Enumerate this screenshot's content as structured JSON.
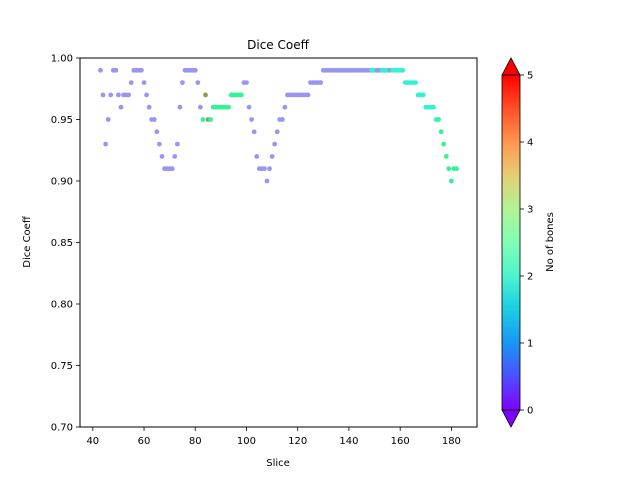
{
  "chart_data": {
    "type": "scatter",
    "title": "Dice Coeff",
    "xlabel": "Slice",
    "ylabel": "Dice Coeff",
    "xlim": [
      35,
      190
    ],
    "ylim": [
      0.7,
      1.0
    ],
    "x_ticks": [
      40,
      60,
      80,
      100,
      120,
      140,
      160,
      180
    ],
    "x_tick_labels": [
      "40",
      "60",
      "80",
      "100",
      "120",
      "140",
      "160",
      "180"
    ],
    "y_ticks": [
      0.7,
      0.75,
      0.8,
      0.85,
      0.9,
      0.95,
      1.0
    ],
    "y_tick_labels": [
      "0.70",
      "0.75",
      "0.80",
      "0.85",
      "0.90",
      "0.95",
      "1.00"
    ],
    "grid": false,
    "colormap": "rainbow",
    "colorbar": {
      "label": "No of bones",
      "range": [
        0,
        5
      ],
      "ticks": [
        0,
        1,
        2,
        3,
        4,
        5
      ],
      "tick_labels": [
        "0",
        "1",
        "2",
        "3",
        "4",
        "5"
      ],
      "extend": "both",
      "under_color": "#8000ff",
      "over_color": "#ff0000"
    },
    "points": [
      {
        "x": 43,
        "y": 0.99,
        "c": 1
      },
      {
        "x": 44,
        "y": 0.97,
        "c": 1
      },
      {
        "x": 45,
        "y": 0.93,
        "c": 1
      },
      {
        "x": 46,
        "y": 0.95,
        "c": 1
      },
      {
        "x": 47,
        "y": 0.97,
        "c": 1
      },
      {
        "x": 48,
        "y": 0.99,
        "c": 1
      },
      {
        "x": 49,
        "y": 0.99,
        "c": 1
      },
      {
        "x": 50,
        "y": 0.97,
        "c": 1
      },
      {
        "x": 51,
        "y": 0.96,
        "c": 1
      },
      {
        "x": 52,
        "y": 0.97,
        "c": 1
      },
      {
        "x": 53,
        "y": 0.97,
        "c": 1
      },
      {
        "x": 54,
        "y": 0.97,
        "c": 1
      },
      {
        "x": 55,
        "y": 0.98,
        "c": 1
      },
      {
        "x": 56,
        "y": 0.99,
        "c": 1
      },
      {
        "x": 57,
        "y": 0.99,
        "c": 1
      },
      {
        "x": 58,
        "y": 0.99,
        "c": 1
      },
      {
        "x": 59,
        "y": 0.99,
        "c": 1
      },
      {
        "x": 60,
        "y": 0.98,
        "c": 1
      },
      {
        "x": 61,
        "y": 0.97,
        "c": 1
      },
      {
        "x": 62,
        "y": 0.96,
        "c": 1
      },
      {
        "x": 63,
        "y": 0.95,
        "c": 1
      },
      {
        "x": 64,
        "y": 0.95,
        "c": 1
      },
      {
        "x": 65,
        "y": 0.94,
        "c": 1
      },
      {
        "x": 66,
        "y": 0.93,
        "c": 1
      },
      {
        "x": 67,
        "y": 0.92,
        "c": 1
      },
      {
        "x": 68,
        "y": 0.91,
        "c": 1
      },
      {
        "x": 69,
        "y": 0.91,
        "c": 1
      },
      {
        "x": 70,
        "y": 0.91,
        "c": 1
      },
      {
        "x": 71,
        "y": 0.91,
        "c": 1
      },
      {
        "x": 72,
        "y": 0.92,
        "c": 1
      },
      {
        "x": 73,
        "y": 0.93,
        "c": 1
      },
      {
        "x": 74,
        "y": 0.96,
        "c": 1
      },
      {
        "x": 75,
        "y": 0.98,
        "c": 1
      },
      {
        "x": 76,
        "y": 0.99,
        "c": 1
      },
      {
        "x": 77,
        "y": 0.99,
        "c": 1
      },
      {
        "x": 78,
        "y": 0.99,
        "c": 1
      },
      {
        "x": 79,
        "y": 0.99,
        "c": 1
      },
      {
        "x": 80,
        "y": 0.99,
        "c": 1
      },
      {
        "x": 81,
        "y": 0.98,
        "c": 1
      },
      {
        "x": 82,
        "y": 0.96,
        "c": 1
      },
      {
        "x": 83,
        "y": 0.95,
        "c": 3
      },
      {
        "x": 84,
        "y": 0.97,
        "c": 4
      },
      {
        "x": 85,
        "y": 0.95,
        "c": 4
      },
      {
        "x": 86,
        "y": 0.95,
        "c": 3
      },
      {
        "x": 87,
        "y": 0.96,
        "c": 3
      },
      {
        "x": 88,
        "y": 0.96,
        "c": 3
      },
      {
        "x": 89,
        "y": 0.96,
        "c": 3
      },
      {
        "x": 90,
        "y": 0.96,
        "c": 3
      },
      {
        "x": 91,
        "y": 0.96,
        "c": 3
      },
      {
        "x": 92,
        "y": 0.96,
        "c": 3
      },
      {
        "x": 93,
        "y": 0.96,
        "c": 3
      },
      {
        "x": 94,
        "y": 0.97,
        "c": 3
      },
      {
        "x": 95,
        "y": 0.97,
        "c": 3
      },
      {
        "x": 96,
        "y": 0.97,
        "c": 3
      },
      {
        "x": 97,
        "y": 0.97,
        "c": 3
      },
      {
        "x": 98,
        "y": 0.97,
        "c": 3
      },
      {
        "x": 99,
        "y": 0.98,
        "c": 1
      },
      {
        "x": 100,
        "y": 0.98,
        "c": 1
      },
      {
        "x": 101,
        "y": 0.96,
        "c": 1
      },
      {
        "x": 102,
        "y": 0.95,
        "c": 1
      },
      {
        "x": 103,
        "y": 0.94,
        "c": 1
      },
      {
        "x": 104,
        "y": 0.92,
        "c": 1
      },
      {
        "x": 105,
        "y": 0.91,
        "c": 1
      },
      {
        "x": 106,
        "y": 0.91,
        "c": 1
      },
      {
        "x": 107,
        "y": 0.91,
        "c": 1
      },
      {
        "x": 108,
        "y": 0.9,
        "c": 1
      },
      {
        "x": 109,
        "y": 0.91,
        "c": 1
      },
      {
        "x": 110,
        "y": 0.92,
        "c": 1
      },
      {
        "x": 111,
        "y": 0.93,
        "c": 1
      },
      {
        "x": 112,
        "y": 0.94,
        "c": 1
      },
      {
        "x": 113,
        "y": 0.95,
        "c": 1
      },
      {
        "x": 114,
        "y": 0.95,
        "c": 1
      },
      {
        "x": 115,
        "y": 0.96,
        "c": 1
      },
      {
        "x": 116,
        "y": 0.97,
        "c": 1
      },
      {
        "x": 117,
        "y": 0.97,
        "c": 1
      },
      {
        "x": 118,
        "y": 0.97,
        "c": 1
      },
      {
        "x": 119,
        "y": 0.97,
        "c": 1
      },
      {
        "x": 120,
        "y": 0.97,
        "c": 1
      },
      {
        "x": 121,
        "y": 0.97,
        "c": 1
      },
      {
        "x": 122,
        "y": 0.97,
        "c": 1
      },
      {
        "x": 123,
        "y": 0.97,
        "c": 1
      },
      {
        "x": 124,
        "y": 0.97,
        "c": 1
      },
      {
        "x": 125,
        "y": 0.98,
        "c": 1
      },
      {
        "x": 126,
        "y": 0.98,
        "c": 1
      },
      {
        "x": 127,
        "y": 0.98,
        "c": 1
      },
      {
        "x": 128,
        "y": 0.98,
        "c": 1
      },
      {
        "x": 129,
        "y": 0.98,
        "c": 1
      },
      {
        "x": 130,
        "y": 0.99,
        "c": 1
      },
      {
        "x": 131,
        "y": 0.99,
        "c": 1
      },
      {
        "x": 132,
        "y": 0.99,
        "c": 1
      },
      {
        "x": 133,
        "y": 0.99,
        "c": 1
      },
      {
        "x": 134,
        "y": 0.99,
        "c": 1
      },
      {
        "x": 135,
        "y": 0.99,
        "c": 1
      },
      {
        "x": 136,
        "y": 0.99,
        "c": 1
      },
      {
        "x": 137,
        "y": 0.99,
        "c": 1
      },
      {
        "x": 138,
        "y": 0.99,
        "c": 1
      },
      {
        "x": 139,
        "y": 0.99,
        "c": 1
      },
      {
        "x": 140,
        "y": 0.99,
        "c": 1
      },
      {
        "x": 141,
        "y": 0.99,
        "c": 1
      },
      {
        "x": 142,
        "y": 0.99,
        "c": 1
      },
      {
        "x": 143,
        "y": 0.99,
        "c": 1
      },
      {
        "x": 144,
        "y": 0.99,
        "c": 1
      },
      {
        "x": 145,
        "y": 0.99,
        "c": 1
      },
      {
        "x": 146,
        "y": 0.99,
        "c": 1
      },
      {
        "x": 147,
        "y": 0.99,
        "c": 1
      },
      {
        "x": 148,
        "y": 0.99,
        "c": 1
      },
      {
        "x": 149,
        "y": 0.99,
        "c": 2
      },
      {
        "x": 150,
        "y": 0.99,
        "c": 2
      },
      {
        "x": 151,
        "y": 0.99,
        "c": 1
      },
      {
        "x": 152,
        "y": 0.99,
        "c": 1
      },
      {
        "x": 153,
        "y": 0.99,
        "c": 2
      },
      {
        "x": 154,
        "y": 0.99,
        "c": 2
      },
      {
        "x": 155,
        "y": 0.99,
        "c": 2
      },
      {
        "x": 156,
        "y": 0.99,
        "c": 1
      },
      {
        "x": 157,
        "y": 0.99,
        "c": 2
      },
      {
        "x": 158,
        "y": 0.99,
        "c": 2
      },
      {
        "x": 159,
        "y": 0.99,
        "c": 2
      },
      {
        "x": 160,
        "y": 0.99,
        "c": 2
      },
      {
        "x": 161,
        "y": 0.99,
        "c": 2
      },
      {
        "x": 162,
        "y": 0.98,
        "c": 2
      },
      {
        "x": 163,
        "y": 0.98,
        "c": 2
      },
      {
        "x": 164,
        "y": 0.98,
        "c": 2
      },
      {
        "x": 165,
        "y": 0.98,
        "c": 2
      },
      {
        "x": 166,
        "y": 0.98,
        "c": 2
      },
      {
        "x": 167,
        "y": 0.97,
        "c": 2
      },
      {
        "x": 168,
        "y": 0.97,
        "c": 2
      },
      {
        "x": 169,
        "y": 0.97,
        "c": 2
      },
      {
        "x": 170,
        "y": 0.96,
        "c": 2
      },
      {
        "x": 171,
        "y": 0.96,
        "c": 2
      },
      {
        "x": 172,
        "y": 0.96,
        "c": 2
      },
      {
        "x": 173,
        "y": 0.96,
        "c": 2
      },
      {
        "x": 174,
        "y": 0.95,
        "c": 2
      },
      {
        "x": 175,
        "y": 0.95,
        "c": 3
      },
      {
        "x": 176,
        "y": 0.94,
        "c": 3
      },
      {
        "x": 177,
        "y": 0.93,
        "c": 3
      },
      {
        "x": 178,
        "y": 0.92,
        "c": 3
      },
      {
        "x": 179,
        "y": 0.91,
        "c": 3
      },
      {
        "x": 180,
        "y": 0.9,
        "c": 3
      },
      {
        "x": 181,
        "y": 0.91,
        "c": 3
      },
      {
        "x": 182,
        "y": 0.91,
        "c": 3
      }
    ]
  }
}
